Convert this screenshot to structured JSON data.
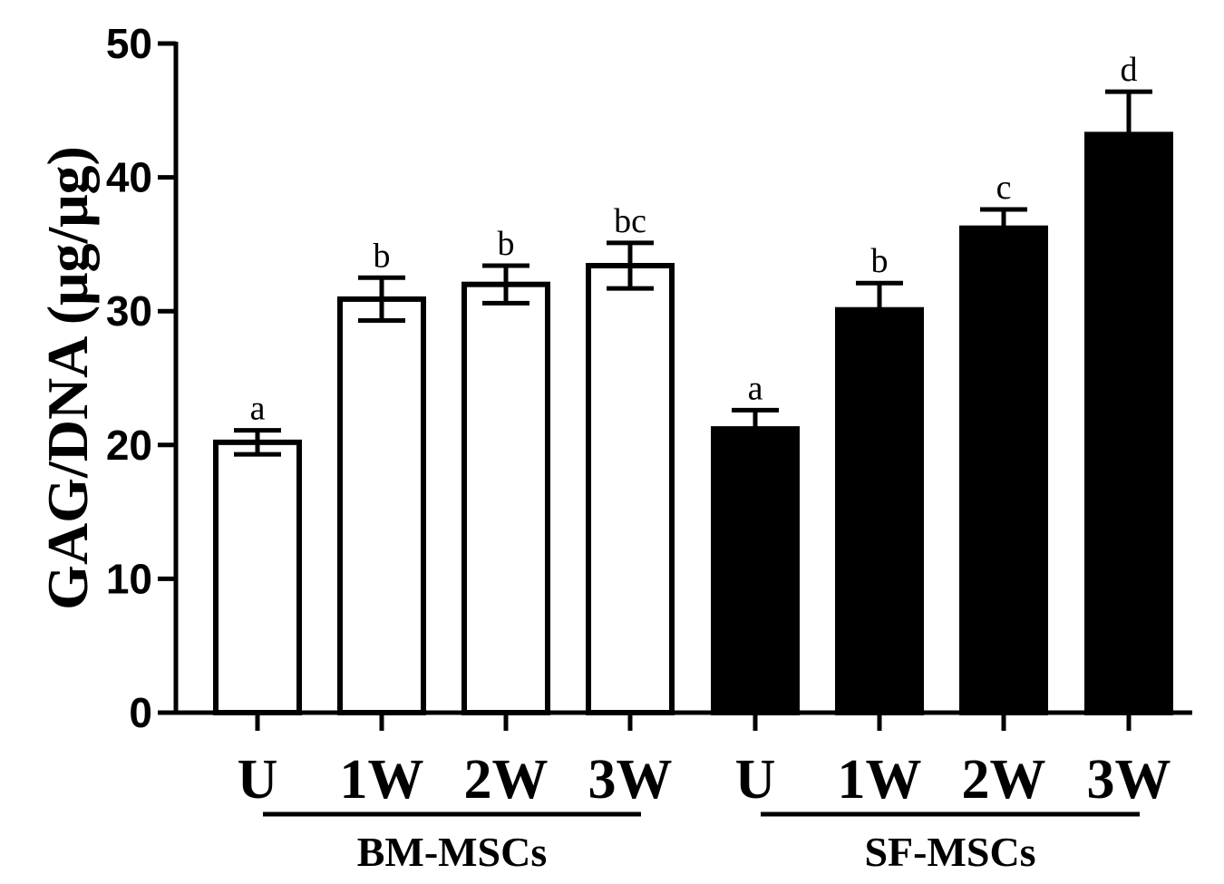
{
  "chart_data": {
    "type": "bar",
    "ylabel": "GAG/DNA (μg/μg)",
    "ylim": [
      0,
      50
    ],
    "yticks": [
      0,
      10,
      20,
      30,
      40,
      50
    ],
    "categories": [
      "U",
      "1W",
      "2W",
      "3W",
      "U",
      "1W",
      "2W",
      "3W"
    ],
    "groups": [
      {
        "name": "BM-MSCs",
        "fill": "#ffffff",
        "start": 0,
        "end": 3
      },
      {
        "name": "SF-MSCs",
        "fill": "#000000",
        "start": 4,
        "end": 7
      }
    ],
    "values": [
      20.2,
      30.9,
      32.0,
      33.4,
      21.2,
      30.1,
      36.2,
      43.2
    ],
    "errors": [
      0.9,
      1.6,
      1.4,
      1.7,
      1.4,
      2.0,
      1.4,
      3.2
    ],
    "error_style": [
      "both",
      "both",
      "both",
      "both",
      "up",
      "up",
      "up",
      "up"
    ],
    "significance": [
      "a",
      "b",
      "b",
      "bc",
      "a",
      "b",
      "c",
      "d"
    ],
    "grid": false,
    "legend": "none"
  }
}
